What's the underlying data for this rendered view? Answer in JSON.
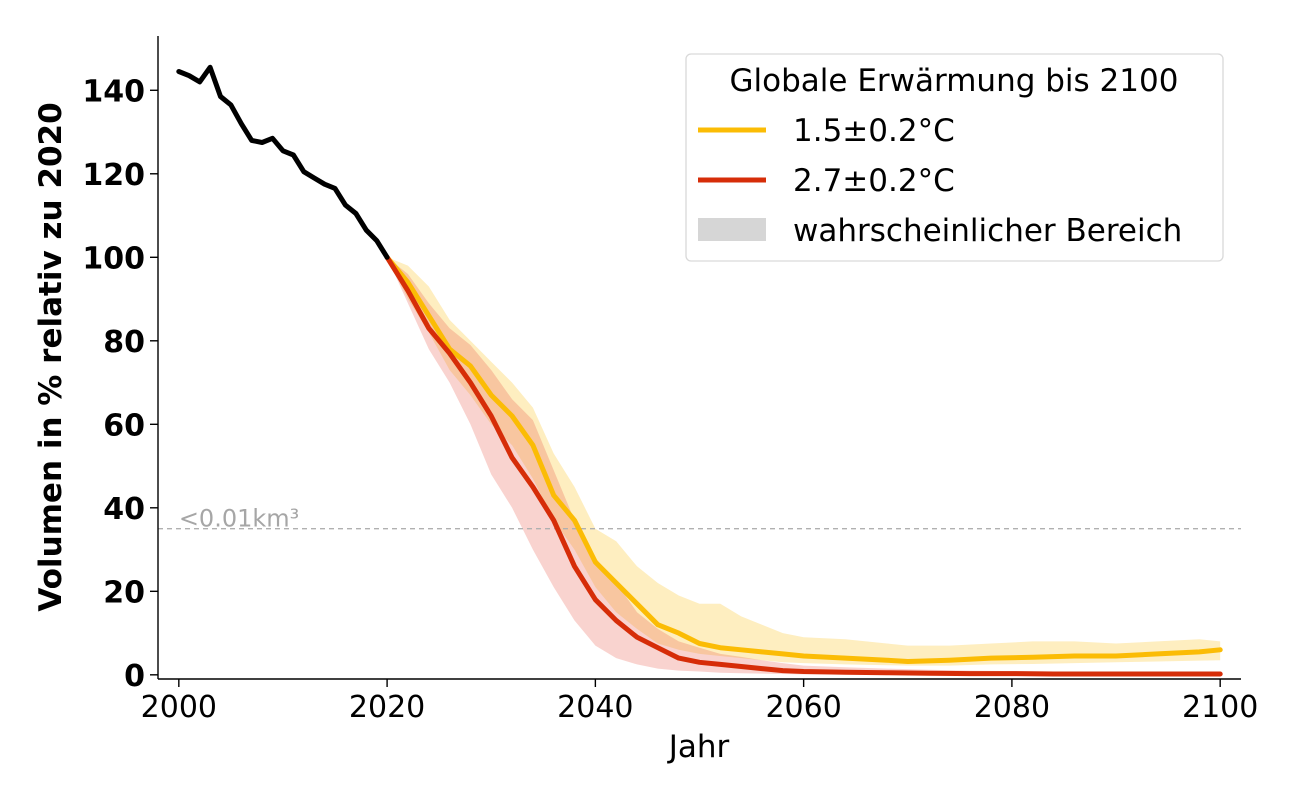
{
  "chart_data": {
    "type": "line",
    "title": "",
    "xlabel": "Jahr",
    "ylabel": "Volumen in % relativ zu 2020",
    "xlim": [
      1998,
      2102
    ],
    "ylim": [
      -1,
      153
    ],
    "xticks": [
      "2000",
      "2020",
      "2040",
      "2060",
      "2080",
      "2100"
    ],
    "yticks": [
      "0",
      "20",
      "40",
      "60",
      "80",
      "100",
      "120",
      "140"
    ],
    "grid": false,
    "legend": {
      "placement": "top-right",
      "title": "Globale Erwärmung bis 2100",
      "entries": [
        "1.5±0.2°C",
        "2.7±0.2°C",
        "wahrscheinlicher Bereich"
      ]
    },
    "threshold": {
      "y": 35,
      "label": "<0.01km³"
    },
    "series": [
      {
        "key": "historical",
        "color": "#000000",
        "x": [
          2000,
          2001,
          2002,
          2003,
          2004,
          2005,
          2006,
          2007,
          2008,
          2009,
          2010,
          2011,
          2012,
          2013,
          2014,
          2015,
          2016,
          2017,
          2018,
          2019,
          2020
        ],
        "y": [
          144.5,
          143.5,
          142,
          145.5,
          138.5,
          136.5,
          132,
          128,
          127.5,
          128.5,
          125.5,
          124.5,
          120.5,
          119,
          117.5,
          116.5,
          112.5,
          110.5,
          106.5,
          104,
          100
        ]
      },
      {
        "name": "1.5±0.2°C",
        "color": "#fbbc05",
        "band_color": "#fbbc05",
        "x": [
          2020,
          2022,
          2024,
          2026,
          2028,
          2030,
          2032,
          2034,
          2036,
          2038,
          2040,
          2042,
          2044,
          2046,
          2048,
          2050,
          2052,
          2054,
          2056,
          2058,
          2060,
          2064,
          2068,
          2070,
          2074,
          2078,
          2082,
          2086,
          2090,
          2094,
          2098,
          2100
        ],
        "y": [
          100,
          94,
          86,
          78,
          74,
          67,
          62,
          55,
          43,
          37,
          27,
          22,
          17,
          12,
          10,
          7.5,
          6.5,
          6,
          5.5,
          5,
          4.5,
          4,
          3.5,
          3.2,
          3.5,
          4,
          4.2,
          4.5,
          4.5,
          5,
          5.5,
          6
        ],
        "low": [
          100,
          90,
          82,
          73,
          67,
          60,
          55,
          47,
          37,
          30,
          21,
          15,
          11,
          7.5,
          6,
          5,
          4.5,
          4,
          3.5,
          3,
          2.8,
          2.5,
          2.3,
          2.2,
          2.2,
          2.5,
          2.6,
          2.8,
          3,
          3.2,
          3.4,
          3.5
        ],
        "high": [
          100,
          98,
          93,
          85,
          80,
          75,
          70,
          64,
          53,
          45,
          35,
          32,
          26,
          22,
          19,
          17,
          17,
          14,
          12,
          10,
          9,
          8.5,
          7.5,
          7,
          7,
          7.5,
          8,
          8,
          7.5,
          8,
          8.5,
          8
        ]
      },
      {
        "name": "2.7±0.2°C",
        "color": "#d62d08",
        "band_color": "#e8503e",
        "x": [
          2020,
          2022,
          2024,
          2026,
          2028,
          2030,
          2032,
          2034,
          2036,
          2038,
          2040,
          2042,
          2044,
          2046,
          2048,
          2050,
          2052,
          2054,
          2056,
          2058,
          2060,
          2064,
          2068,
          2072,
          2076,
          2080,
          2084,
          2088,
          2092,
          2096,
          2100
        ],
        "y": [
          100,
          92,
          83,
          77,
          70,
          62,
          52,
          45,
          37,
          26,
          18,
          13,
          9,
          6.5,
          4,
          3,
          2.5,
          2,
          1.5,
          1,
          0.8,
          0.6,
          0.5,
          0.4,
          0.3,
          0.3,
          0.2,
          0.2,
          0.2,
          0.2,
          0.2
        ],
        "low": [
          100,
          89,
          78,
          70,
          60,
          48,
          40,
          30,
          21,
          13,
          7,
          4,
          2.5,
          1.5,
          1,
          0.8,
          0.5,
          0.4,
          0.3,
          0.2,
          0.1,
          0.1,
          0.1,
          0.1,
          0.1,
          0.1,
          0.1,
          0.1,
          0.1,
          0.1,
          0.1
        ],
        "high": [
          100,
          96,
          89,
          83,
          79,
          73,
          66,
          61,
          49,
          37,
          28,
          22,
          15,
          11,
          8,
          6.5,
          5,
          4.3,
          3.5,
          2.8,
          2.2,
          1.8,
          1.5,
          1.2,
          1,
          0.9,
          0.8,
          0.7,
          0.7,
          0.6,
          0.6
        ]
      }
    ]
  }
}
